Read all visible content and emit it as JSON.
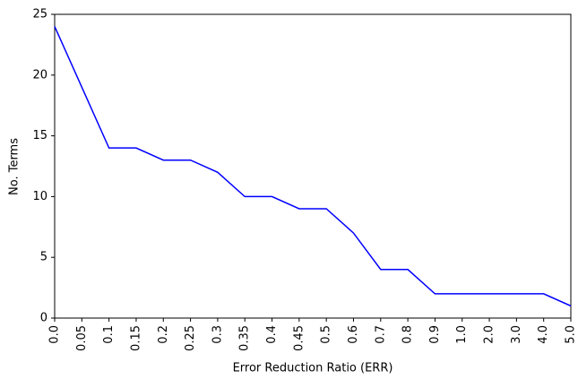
{
  "chart_data": {
    "type": "line",
    "xlabel": "Error Reduction Ratio (ERR)",
    "ylabel": "No. Terms",
    "categories": [
      "0.0",
      "0.05",
      "0.1",
      "0.15",
      "0.2",
      "0.25",
      "0.3",
      "0.35",
      "0.4",
      "0.45",
      "0.5",
      "0.6",
      "0.7",
      "0.8",
      "0.9",
      "1.0",
      "2.0",
      "3.0",
      "4.0",
      "5.0"
    ],
    "values": [
      24,
      19,
      14,
      14,
      13,
      13,
      12,
      10,
      10,
      9,
      9,
      7,
      4,
      4,
      2,
      2,
      2,
      2,
      2,
      1
    ],
    "color": "#0000ff",
    "ylim": [
      0,
      25
    ],
    "yticks": [
      0,
      5,
      10,
      15,
      20,
      25
    ]
  }
}
